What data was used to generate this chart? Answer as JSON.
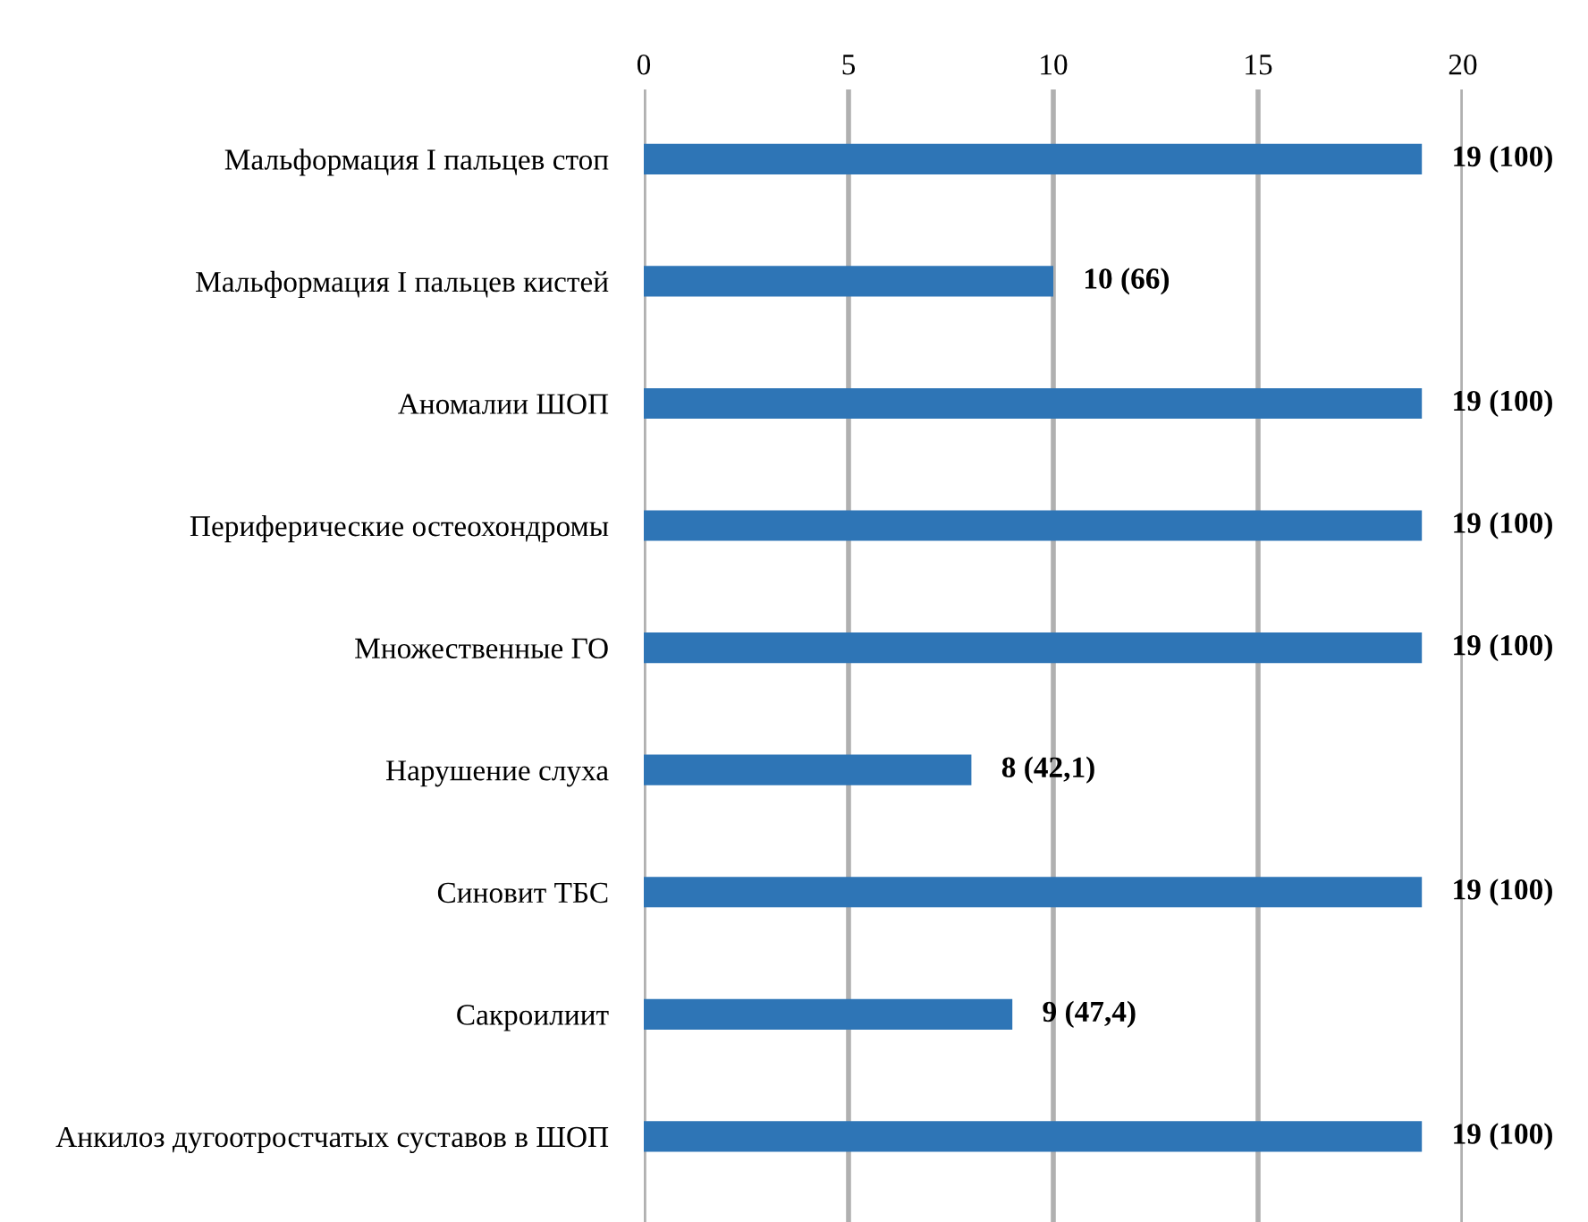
{
  "chart_data": {
    "type": "bar",
    "orientation": "horizontal",
    "categories": [
      "Мальформация I пальцев стоп",
      "Мальформация I пальцев кистей",
      "Аномалии ШОП",
      "Периферические остеохондромы",
      "Множественные ГО",
      "Нарушение слуха",
      "Синовит ТБС",
      "Сакроилиит",
      "Анкилоз дугоотростчатых суставов в ШОП"
    ],
    "values": [
      19,
      10,
      19,
      19,
      19,
      8,
      19,
      9,
      19
    ],
    "value_labels": [
      "19 (100)",
      "10 (66)",
      "19 (100)",
      "19 (100)",
      "19 (100)",
      "8 (42,1)",
      "19 (100)",
      "9 (47,4)",
      "19 (100)"
    ],
    "color": "#2e75b6",
    "xlim": [
      0,
      20
    ],
    "xticks": [
      0,
      5,
      10,
      15,
      20
    ],
    "grid": "x"
  }
}
